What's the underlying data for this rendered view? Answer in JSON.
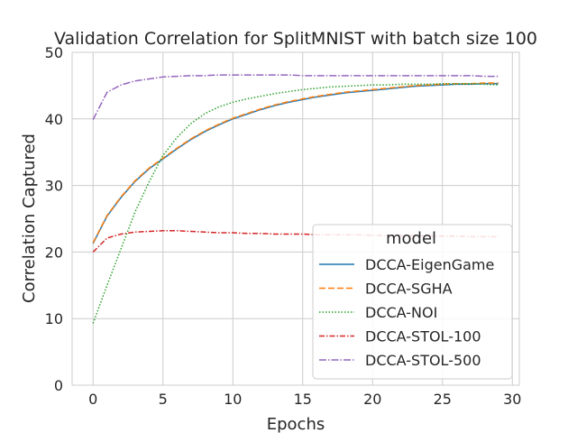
{
  "chart_data": {
    "type": "line",
    "title": "Validation Correlation for SplitMNIST with batch size 100",
    "xlabel": "Epochs",
    "ylabel": "Correlation Captured",
    "xlim": [
      -1.5,
      30.5
    ],
    "ylim": [
      0,
      50
    ],
    "xticks": [
      0,
      5,
      10,
      15,
      20,
      25,
      30
    ],
    "yticks": [
      0,
      10,
      20,
      30,
      40,
      50
    ],
    "grid": true,
    "legend_title": "model",
    "legend_position": "lower-right",
    "x": [
      0,
      1,
      2,
      3,
      4,
      5,
      6,
      7,
      8,
      9,
      10,
      11,
      12,
      13,
      14,
      15,
      16,
      17,
      18,
      19,
      20,
      21,
      22,
      23,
      24,
      25,
      26,
      27,
      28,
      29
    ],
    "series": [
      {
        "name": "DCCA-EigenGame",
        "color": "#1f77b4",
        "dash": "",
        "values": [
          21.3,
          25.4,
          28.2,
          30.6,
          32.5,
          34.0,
          35.5,
          36.9,
          38.1,
          39.1,
          40.0,
          40.7,
          41.4,
          42.0,
          42.5,
          42.9,
          43.3,
          43.6,
          43.9,
          44.1,
          44.3,
          44.5,
          44.7,
          44.9,
          45.0,
          45.1,
          45.2,
          45.2,
          45.3,
          45.3
        ]
      },
      {
        "name": "DCCA-SGHA",
        "color": "#ff7f0e",
        "dash": "7,3",
        "values": [
          21.4,
          25.5,
          28.3,
          30.7,
          32.6,
          34.1,
          35.6,
          37.0,
          38.2,
          39.2,
          40.1,
          40.8,
          41.5,
          42.1,
          42.6,
          43.0,
          43.4,
          43.7,
          44.0,
          44.2,
          44.4,
          44.6,
          44.8,
          45.0,
          45.1,
          45.2,
          45.3,
          45.3,
          45.4,
          45.4
        ]
      },
      {
        "name": "DCCA-NOI",
        "color": "#2ca02c",
        "dash": "1.5,2",
        "values": [
          9.3,
          15.0,
          20.5,
          26.0,
          30.5,
          34.5,
          37.2,
          39.3,
          40.8,
          41.8,
          42.5,
          43.0,
          43.4,
          43.8,
          44.1,
          44.4,
          44.6,
          44.8,
          44.9,
          45.0,
          45.1,
          45.1,
          45.2,
          45.2,
          45.2,
          45.3,
          45.3,
          45.3,
          45.2,
          45.1
        ]
      },
      {
        "name": "DCCA-STOL-100",
        "color": "#d62728",
        "dash": "6,2,1.5,2",
        "values": [
          20.0,
          22.1,
          22.7,
          23.0,
          23.1,
          23.2,
          23.2,
          23.1,
          23.0,
          22.9,
          22.9,
          22.8,
          22.8,
          22.7,
          22.7,
          22.7,
          22.6,
          22.6,
          22.6,
          22.6,
          22.5,
          22.5,
          22.5,
          22.5,
          22.4,
          22.4,
          22.4,
          22.3,
          22.3,
          22.3
        ]
      },
      {
        "name": "DCCA-STOL-500",
        "color": "#9467bd",
        "dash": "8,2,1.5,2",
        "values": [
          39.9,
          44.0,
          45.1,
          45.7,
          46.0,
          46.3,
          46.4,
          46.5,
          46.5,
          46.6,
          46.6,
          46.6,
          46.6,
          46.6,
          46.6,
          46.5,
          46.5,
          46.5,
          46.5,
          46.5,
          46.5,
          46.5,
          46.5,
          46.5,
          46.5,
          46.5,
          46.5,
          46.5,
          46.4,
          46.4
        ]
      }
    ]
  }
}
